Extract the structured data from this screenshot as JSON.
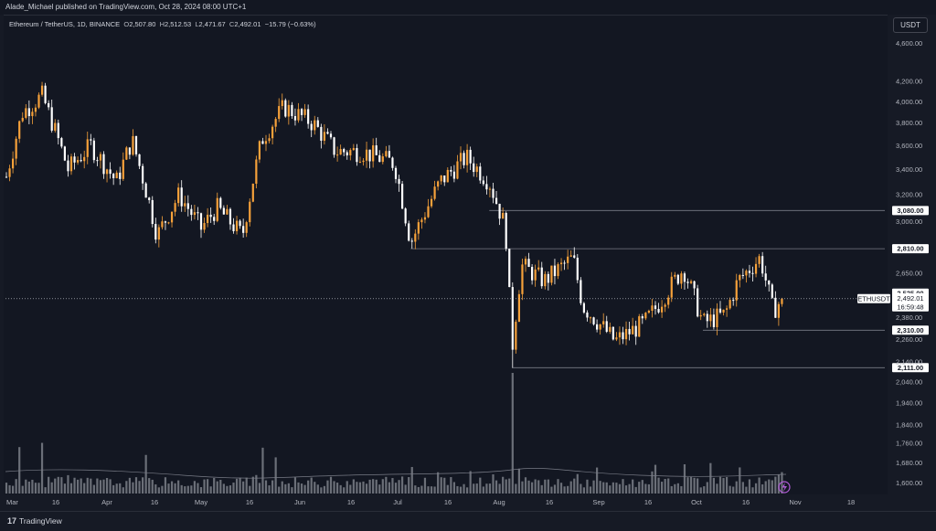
{
  "header": {
    "publisher": "Alade_Michael published on TradingView.com, Oct 28, 2024 08:00 UTC+1"
  },
  "legend": {
    "symbol": "Ethereum / TetherUS, 1D, BINANCE",
    "open_label": "O",
    "open": "2,507.80",
    "high_label": "H",
    "high": "2,512.53",
    "low_label": "L",
    "low": "2,471.67",
    "close_label": "C",
    "close": "2,492.01",
    "change": "−15.79 (−0.63%)"
  },
  "currency_button": "USDT",
  "footer": {
    "brand_logo": "17",
    "brand": "TradingView"
  },
  "colors": {
    "background": "#131722",
    "up_candle": "#f6a13a",
    "down_candle": "#ffffff",
    "volume_bar": "#8a8d96",
    "level_line": "#787b86",
    "label_bg": "#ffffff"
  },
  "icons": {
    "lightning": "lightning-icon",
    "logo": "tradingview-logo-icon"
  },
  "chart_data": {
    "type": "candlestick",
    "symbol": "ETHUSDT",
    "timeframe": "1D",
    "y_scale": "log",
    "ylim": [
      1560,
      4720
    ],
    "price_ticks": [
      "4,600.00",
      "4,200.00",
      "4,000.00",
      "3,800.00",
      "3,600.00",
      "3,400.00",
      "3,200.00",
      "3,000.00",
      "2,650.00",
      "2,380.00",
      "2,260.00",
      "2,140.00",
      "2,040.00",
      "1,940.00",
      "1,840.00",
      "1,760.00",
      "1,680.00",
      "1,600.00"
    ],
    "date_ticks": [
      "Mar",
      "16",
      "Apr",
      "16",
      "May",
      "16",
      "Jun",
      "16",
      "Jul",
      "16",
      "Aug",
      "16",
      "Sep",
      "16",
      "Oct",
      "16",
      "Nov",
      "18"
    ],
    "levels": [
      {
        "label": "3,080.00",
        "value": 3080,
        "from": "Jul 29"
      },
      {
        "label": "2,810.00",
        "value": 2810,
        "from": "Jul 05"
      },
      {
        "label": "2,525.00",
        "value": 2525,
        "from": ""
      },
      {
        "label": "2,310.00",
        "value": 2310,
        "from": "Oct 03"
      },
      {
        "label": "2,111.00",
        "value": 2111,
        "from": "Aug 05"
      }
    ],
    "current": {
      "symbol": "ETHUSDT",
      "price": "2,492.01",
      "countdown": "16:59:48"
    },
    "path_points": [
      {
        "date": "Mar 01",
        "price": 3340
      },
      {
        "date": "Mar 06",
        "price": 3900
      },
      {
        "date": "Mar 12",
        "price": 4060
      },
      {
        "date": "Mar 20",
        "price": 3400
      },
      {
        "date": "Mar 27",
        "price": 3600
      },
      {
        "date": "Apr 04",
        "price": 3300
      },
      {
        "date": "Apr 09",
        "price": 3650
      },
      {
        "date": "Apr 17",
        "price": 2900
      },
      {
        "date": "Apr 24",
        "price": 3200
      },
      {
        "date": "May 01",
        "price": 2950
      },
      {
        "date": "May 06",
        "price": 3100
      },
      {
        "date": "May 14",
        "price": 2900
      },
      {
        "date": "May 20",
        "price": 3650
      },
      {
        "date": "May 27",
        "price": 3950
      },
      {
        "date": "Jun 05",
        "price": 3800
      },
      {
        "date": "Jun 12",
        "price": 3550
      },
      {
        "date": "Jun 20",
        "price": 3550
      },
      {
        "date": "Jun 30",
        "price": 3450
      },
      {
        "date": "Jul 05",
        "price": 2850
      },
      {
        "date": "Jul 14",
        "price": 3300
      },
      {
        "date": "Jul 22",
        "price": 3500
      },
      {
        "date": "Jul 29",
        "price": 3300
      },
      {
        "date": "Aug 03",
        "price": 2950
      },
      {
        "date": "Aug 05",
        "price": 2200
      },
      {
        "date": "Aug 08",
        "price": 2700
      },
      {
        "date": "Aug 15",
        "price": 2600
      },
      {
        "date": "Aug 24",
        "price": 2750
      },
      {
        "date": "Aug 27",
        "price": 2450
      },
      {
        "date": "Sep 06",
        "price": 2250
      },
      {
        "date": "Sep 15",
        "price": 2350
      },
      {
        "date": "Sep 19",
        "price": 2450
      },
      {
        "date": "Sep 27",
        "price": 2680
      },
      {
        "date": "Oct 03",
        "price": 2350
      },
      {
        "date": "Oct 10",
        "price": 2400
      },
      {
        "date": "Oct 14",
        "price": 2600
      },
      {
        "date": "Oct 21",
        "price": 2750
      },
      {
        "date": "Oct 25",
        "price": 2420
      },
      {
        "date": "Oct 28",
        "price": 2492
      }
    ],
    "volume_spikes": [
      {
        "date": "Aug 05",
        "height": 1.0
      },
      {
        "date": "Mar 12",
        "height": 0.42
      },
      {
        "date": "Mar 05",
        "height": 0.35
      },
      {
        "date": "May 20",
        "height": 0.38
      },
      {
        "date": "Apr 13",
        "height": 0.32
      },
      {
        "date": "May 24",
        "height": 0.3
      },
      {
        "date": "Jul 05",
        "height": 0.22
      }
    ]
  }
}
